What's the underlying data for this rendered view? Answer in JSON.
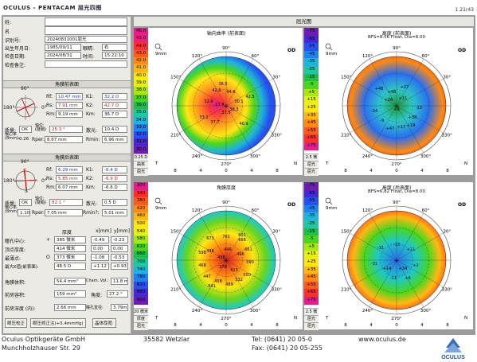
{
  "app": {
    "title": "OCULUS - PENTACAM 屈光四图",
    "version": "1.21r43",
    "center_title": "屈光图"
  },
  "patient": {
    "rows": [
      {
        "label": "姓:",
        "value": ""
      },
      {
        "label": "名",
        "value": ""
      },
      {
        "label": "识别号:",
        "value": "20240831001屈光"
      },
      {
        "label": "出生年月日:",
        "value": "1985/09/11",
        "eye_label": "眼睛:",
        "eye": "右"
      },
      {
        "label": "检查日期:",
        "value": "2024/08/31",
        "time_label": "时间:",
        "time": "15:22:10"
      },
      {
        "label": "检查备注:",
        "value": ""
      }
    ]
  },
  "front": {
    "header": "角膜前表面",
    "rf_label": "Rf:",
    "rf": "10.47 mm",
    "k1_label": "K1:",
    "k1": "32.2 D",
    "rs_label": "Rs:",
    "rs": "7.91 mm",
    "k2_label": "K2:",
    "k2": "42.7 D",
    "rm_label": "Rm:",
    "rm": "9.19 mm",
    "km_label": "Km:",
    "km": "36.7 D",
    "axis_label": "轴位:(陡峭)",
    "axis": "25.3 °",
    "astig_label": "散光:",
    "astig": "10.4 D",
    "quality_label": "质量:",
    "quality": "OK",
    "ecc_label": "偏心率(8mm):",
    "ecc": "-0.26",
    "rper_label": "Rper:",
    "rper": "8.67 mm",
    "rmin_label": "Rmin:",
    "rmin": "6.96 mm",
    "deg90": "90°",
    "deg0": "0°",
    "deg180": "180°"
  },
  "back": {
    "header": "角膜后表面",
    "rf_label": "Rf:",
    "rf": "6.29 mm",
    "k1_label": "K1:",
    "k1": "-6.4 D",
    "rs_label": "Rs:",
    "rs": "5.85 mm",
    "k2_label": "K2:",
    "k2": "-6.9 D",
    "rm_label": "Rm:",
    "rm": "6.07 mm",
    "km_label": "Km:",
    "km": "-6.6 D",
    "axis_label": "轴位:(陡峭)",
    "axis": "82.1 °",
    "astig_label": "散光:",
    "astig": "0.5 D",
    "quality_label": "质量:",
    "quality": "OK",
    "ecc_label": "偏心率(8mm):",
    "ecc": "1.10",
    "rper_label": "Rper:",
    "rper": "7.05 mm",
    "rmin_label": "Rmin?:",
    "rmin": "5.01 mm",
    "deg90": "90°",
    "deg0": "0°",
    "deg180": "180°"
  },
  "pachy": {
    "col_thick": "厚度",
    "col_x": "x[mm]",
    "col_y": "y[mm]",
    "rows": [
      {
        "label": "瞳孔中心:",
        "sym": "+",
        "thick": "385 微米",
        "x": "-0.49",
        "y": "-0.23"
      },
      {
        "label": "顶点厚度:",
        "sym": "",
        "thick": "414 微米",
        "x": "0.00",
        "y": "0.00"
      },
      {
        "label": "最薄点:",
        "sym": "O",
        "thick": "373 微米",
        "x": "-1.08",
        "y": "-0.53"
      },
      {
        "label": "最大K值(前表面):",
        "sym": "",
        "thick": "48.5 D",
        "x": "+1.12",
        "y": "+0.93"
      }
    ],
    "volume_label": "角膜体积:",
    "volume": "54.4 mm³",
    "chm_label": "Cham. Vol.:",
    "chm": "11.8 mm",
    "angle_label": "前房容积:",
    "angle": "159 mm³",
    "angle2_label": "角度:",
    "angle2": "27.2 °",
    "depth_label": "前房深度 (内):",
    "depth": "2.66 mm",
    "pupil_label": "瞳孔直径:",
    "pupil": "3.79mm",
    "btn1": "眼压校正",
    "btn2": "眼压修正注(+5.4mmHg)",
    "btn3": "晶体厚度:"
  },
  "maps": {
    "tl": {
      "title": "轴向曲率 (前表面)",
      "sub": "",
      "eye": "OD",
      "mm": "9mm",
      "scale": [
        "46.0",
        "45.0",
        "44.0",
        "43.0",
        "42.0",
        "41.0",
        "40.0",
        "39.0",
        "38.0",
        "37.0",
        "36.0",
        "35.0",
        "34.0",
        "33.0",
        "32.0",
        "31.0",
        "30.0"
      ],
      "scale_colors": [
        "#e01e8c",
        "#f0207a",
        "#ff2e2e",
        "#ff5a1e",
        "#ff8a14",
        "#ffb814",
        "#ffe614",
        "#e8f014",
        "#a8e614",
        "#4ad61e",
        "#1ebe4a",
        "#1ec8a0",
        "#1eb4dc",
        "#1e82f0",
        "#2850f0",
        "#4628d2",
        "#6c1eb4"
      ],
      "foot1": "0.25 D",
      "foot2": "曲率",
      "foot3": "屈光",
      "values": [
        "42.6",
        "44.6",
        "32.9",
        "27.8",
        "42.5",
        "38.3",
        "37.5",
        "33.1",
        "37.7",
        "40.9",
        "36.5",
        "30.1"
      ]
    },
    "tr": {
      "title": "高度 (前表面)",
      "sub": "BFS=8.56 Float, Dia=8.00",
      "eye": "OD",
      "mm": "9mm",
      "scale": [
        "-75",
        "-65",
        "-55",
        "-45",
        "-35",
        "-25",
        "-15",
        "-5",
        "+5",
        "+15",
        "+25",
        "+35",
        "+45",
        "+55",
        "+65",
        "+75"
      ],
      "scale_colors": [
        "#6c1eb4",
        "#4628d2",
        "#2850f0",
        "#1e82f0",
        "#1eb4dc",
        "#1ec8a0",
        "#1ebe4a",
        "#4ad61e",
        "#a8e614",
        "#e8f014",
        "#ffe614",
        "#ffb814",
        "#ff8a14",
        "#ff5a1e",
        "#ff2e2e",
        "#e01e8c"
      ],
      "foot1": "2.5 微米",
      "foot2": "屈光",
      "foot3": "屈光",
      "values": [
        "+48",
        "+48",
        "+27",
        "+26",
        "+11",
        "-24",
        "-13",
        "-9",
        "+9",
        "+38",
        "+17",
        "+47",
        "+19"
      ]
    },
    "bl": {
      "title": "角膜厚度",
      "sub": "",
      "eye": "OD",
      "mm": "9mm",
      "scale": [
        "300",
        "340",
        "380",
        "420",
        "460",
        "500",
        "540",
        "580",
        "620",
        "660",
        "700",
        "740",
        "780",
        "820",
        "860",
        "900"
      ],
      "scale_colors": [
        "#e01e8c",
        "#ff2e2e",
        "#ff5a1e",
        "#ff8a14",
        "#ffb814",
        "#ffe614",
        "#e8f014",
        "#a8e614",
        "#4ad61e",
        "#1ebe4a",
        "#1ec8a0",
        "#1eb4dc",
        "#1e82f0",
        "#2850f0",
        "#4628d2",
        "#6c1eb4"
      ],
      "foot1": "20 微米",
      "foot2": "厚度",
      "foot3": "屈光",
      "values": [
        "673",
        "701",
        "666",
        "661",
        "598",
        "436",
        "446",
        "496",
        "436",
        "468",
        "590",
        "447",
        "378",
        "413",
        "550",
        "532",
        "458",
        "489",
        "541",
        "601"
      ]
    },
    "br": {
      "title": "高度 (后表面)",
      "sub": "BFS=6.82 Float, Dia=8.00",
      "eye": "OD",
      "mm": "9mm",
      "scale": [
        "-75",
        "-65",
        "-55",
        "-45",
        "-35",
        "-25",
        "-15",
        "-5",
        "+5",
        "+15",
        "+25",
        "+35",
        "+45",
        "+55",
        "+65",
        "+75"
      ],
      "scale_colors": [
        "#6c1eb4",
        "#4628d2",
        "#2850f0",
        "#1e82f0",
        "#1eb4dc",
        "#1ec8a0",
        "#1ebe4a",
        "#4ad61e",
        "#a8e614",
        "#e8f014",
        "#ffe614",
        "#ffb814",
        "#ff8a14",
        "#ff5a1e",
        "#ff2e2e",
        "#e01e8c"
      ],
      "foot1": "2.5 微米",
      "foot2": "屈光",
      "foot3": "屈光",
      "values": [
        "-31",
        "-13",
        "+11",
        "-31",
        "+14",
        "+34",
        "+2",
        "-11",
        "+6"
      ]
    },
    "angles": {
      "a90": "90°",
      "a120": "120°",
      "a60": "60°",
      "a150": "150°",
      "a30": "30°",
      "a210": "210°",
      "a330": "330°",
      "a240": "240°",
      "a300": "300°",
      "a270": "270°",
      "a0": "0",
      "a180": "180",
      "T": "T",
      "N": "N"
    },
    "ticks": [
      "8",
      "4",
      "0",
      "4",
      "8"
    ]
  },
  "footer": {
    "company": "Oculus Optikgeräte GmbH",
    "street": "Munchholzhauser Str. 29",
    "city": "35582 Wetzlar",
    "tel": "Tel: (0641) 20 05-0",
    "fax": "Fax: (0641) 20 05-255",
    "web": "www.oculus.de",
    "logo": "OCULUS"
  }
}
